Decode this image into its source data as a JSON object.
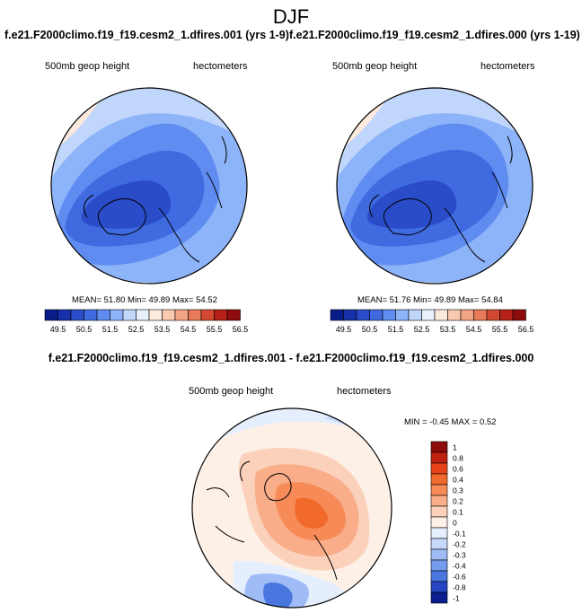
{
  "title": "DJF",
  "panels": [
    {
      "header": "f.e21.F2000climo.f19_f19.cesm2_1.dfires.001 (yrs 1-9)",
      "left_label": "500mb geop height",
      "right_label": "hectometers",
      "stats": "MEAN=  51.80  Min=  49.89  Max=  54.52",
      "colorbar_ticks": [
        "49.5",
        "50.5",
        "51.5",
        "52.5",
        "53.5",
        "54.5",
        "55.5",
        "56.5"
      ]
    },
    {
      "header": "f.e21.F2000climo.f19_f19.cesm2_1.dfires.000 (yrs 1-19)",
      "left_label": "500mb geop height",
      "right_label": "hectometers",
      "stats": "MEAN=  51.76  Min=  49.89  Max=  54.84",
      "colorbar_ticks": [
        "49.5",
        "50.5",
        "51.5",
        "52.5",
        "53.5",
        "54.5",
        "55.5",
        "56.5"
      ]
    }
  ],
  "diff": {
    "header": "f.e21.F2000climo.f19_f19.cesm2_1.dfires.001 - f.e21.F2000climo.f19_f19.cesm2_1.dfires.000",
    "left_label": "500mb geop height",
    "right_label": "hectometers",
    "stats": "MIN = -0.45 MAX =  0.52",
    "colorbar_ticks": [
      "1",
      "0.8",
      "0.6",
      "0.4",
      "0.3",
      "0.2",
      "0.1",
      "0",
      "-0.1",
      "-0.2",
      "-0.3",
      "-0.4",
      "-0.6",
      "-0.8",
      "-1"
    ]
  },
  "colors": {
    "seq_scale": [
      "#081d89",
      "#1530a8",
      "#2a4cc8",
      "#3f6ae0",
      "#5f8cf0",
      "#8db3f8",
      "#c0d6fb",
      "#e9f1fd",
      "#fdeadf",
      "#f9c9b0",
      "#f3a585",
      "#e77a58",
      "#d24a32",
      "#b62217",
      "#8f0c0c"
    ],
    "diff_scale": [
      "#8f0c0c",
      "#c0200f",
      "#e54317",
      "#f2692c",
      "#f68b58",
      "#f9ad88",
      "#fbd1bb",
      "#fdf0e7",
      "#e5eefd",
      "#c6d8fb",
      "#9fbcf6",
      "#769ced",
      "#4a76e0",
      "#2545c2",
      "#0a1e90"
    ]
  }
}
